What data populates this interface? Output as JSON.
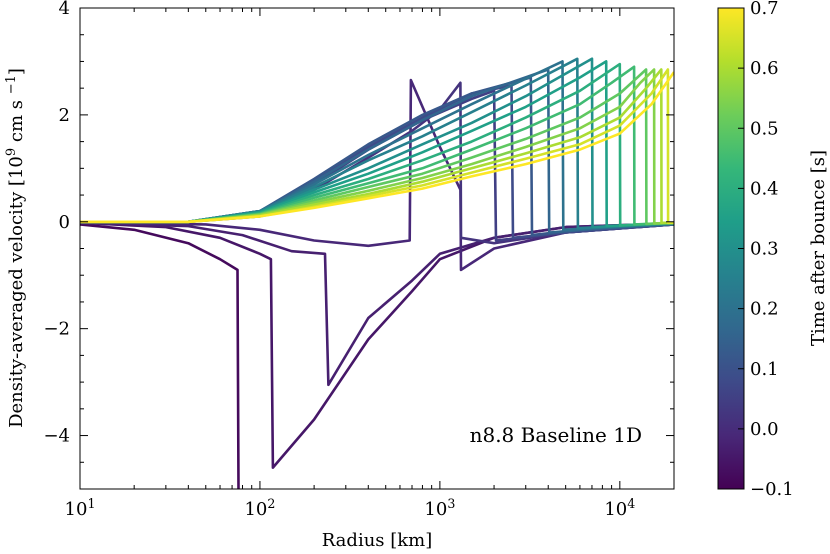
{
  "chart_data": {
    "type": "line",
    "xlabel": "Radius [km]",
    "ylabel": "Density-averaged velocity [10^9 cm s^-1]",
    "xscale": "log",
    "xlim": [
      10,
      20000
    ],
    "ylim": [
      -5,
      4
    ],
    "xticks": [
      10,
      100,
      1000,
      10000
    ],
    "xtick_labels": [
      "10^1",
      "10^2",
      "10^3",
      "10^4"
    ],
    "yticks": [
      -4,
      -2,
      0,
      2,
      4
    ],
    "ytick_labels": [
      "−4",
      "−2",
      "0",
      "2",
      "4"
    ],
    "annotation": "n8.8 Baseline 1D",
    "colorbar": {
      "label": "Time after bounce [s]",
      "colormap": "viridis",
      "range": [
        -0.1,
        0.7
      ],
      "ticks": [
        -0.1,
        0.0,
        0.1,
        0.2,
        0.3,
        0.4,
        0.5,
        0.6,
        0.7
      ],
      "tick_labels": [
        "−0.1",
        "0.0",
        "0.1",
        "0.2",
        "0.3",
        "0.4",
        "0.5",
        "0.6",
        "0.7"
      ]
    },
    "series": [
      {
        "t": -0.08,
        "points": [
          [
            10,
            -0.05
          ],
          [
            20,
            -0.15
          ],
          [
            40,
            -0.4
          ],
          [
            60,
            -0.7
          ],
          [
            75,
            -0.9
          ],
          [
            76,
            -5
          ]
        ]
      },
      {
        "t": -0.05,
        "points": [
          [
            10,
            -0.02
          ],
          [
            30,
            -0.1
          ],
          [
            60,
            -0.3
          ],
          [
            100,
            -0.6
          ],
          [
            115,
            -0.7
          ],
          [
            118,
            -4.6
          ],
          [
            200,
            -3.7
          ],
          [
            400,
            -2.2
          ],
          [
            700,
            -1.3
          ],
          [
            1000,
            -0.7
          ],
          [
            2000,
            -0.3
          ],
          [
            5000,
            -0.1
          ],
          [
            20000,
            -0.03
          ]
        ]
      },
      {
        "t": -0.03,
        "points": [
          [
            10,
            -0.02
          ],
          [
            40,
            -0.08
          ],
          [
            80,
            -0.25
          ],
          [
            150,
            -0.55
          ],
          [
            230,
            -0.6
          ],
          [
            240,
            -3.05
          ],
          [
            400,
            -1.8
          ],
          [
            700,
            -1.1
          ],
          [
            1000,
            -0.6
          ],
          [
            2000,
            -0.3
          ],
          [
            5000,
            -0.1
          ],
          [
            20000,
            -0.03
          ]
        ]
      },
      {
        "t": -0.01,
        "points": [
          [
            10,
            -0.02
          ],
          [
            50,
            -0.05
          ],
          [
            100,
            -0.15
          ],
          [
            200,
            -0.35
          ],
          [
            400,
            -0.45
          ],
          [
            680,
            -0.35
          ],
          [
            690,
            2.65
          ],
          [
            1000,
            1.4
          ],
          [
            1300,
            0.6
          ],
          [
            1310,
            -0.9
          ],
          [
            2000,
            -0.5
          ],
          [
            5000,
            -0.2
          ],
          [
            20000,
            -0.05
          ]
        ]
      },
      {
        "t": 0.02,
        "points": [
          [
            10,
            0
          ],
          [
            40,
            0
          ],
          [
            100,
            0.1
          ],
          [
            200,
            0.6
          ],
          [
            400,
            1.2
          ],
          [
            700,
            1.7
          ],
          [
            1000,
            2.1
          ],
          [
            1300,
            2.6
          ],
          [
            1310,
            -0.3
          ],
          [
            2000,
            -0.4
          ],
          [
            5000,
            -0.2
          ],
          [
            20000,
            -0.05
          ]
        ]
      },
      {
        "t": 0.05,
        "points": [
          [
            10,
            0
          ],
          [
            40,
            0
          ],
          [
            100,
            0.15
          ],
          [
            200,
            0.7
          ],
          [
            400,
            1.35
          ],
          [
            800,
            1.9
          ],
          [
            1500,
            2.3
          ],
          [
            2000,
            2.45
          ],
          [
            2050,
            -0.35
          ],
          [
            5000,
            -0.2
          ],
          [
            20000,
            -0.05
          ]
        ]
      },
      {
        "t": 0.08,
        "points": [
          [
            10,
            0
          ],
          [
            40,
            0
          ],
          [
            100,
            0.2
          ],
          [
            200,
            0.75
          ],
          [
            400,
            1.4
          ],
          [
            800,
            1.95
          ],
          [
            1500,
            2.4
          ],
          [
            2500,
            2.55
          ],
          [
            2550,
            -0.3
          ],
          [
            5000,
            -0.2
          ],
          [
            20000,
            -0.05
          ]
        ]
      },
      {
        "t": 0.12,
        "points": [
          [
            10,
            0
          ],
          [
            40,
            0
          ],
          [
            100,
            0.2
          ],
          [
            200,
            0.8
          ],
          [
            400,
            1.45
          ],
          [
            800,
            2.0
          ],
          [
            1500,
            2.4
          ],
          [
            3200,
            2.7
          ],
          [
            3250,
            -0.25
          ],
          [
            6000,
            -0.15
          ],
          [
            20000,
            -0.05
          ]
        ]
      },
      {
        "t": 0.16,
        "points": [
          [
            10,
            0
          ],
          [
            40,
            0
          ],
          [
            100,
            0.2
          ],
          [
            200,
            0.75
          ],
          [
            400,
            1.35
          ],
          [
            800,
            1.9
          ],
          [
            1500,
            2.35
          ],
          [
            4000,
            2.85
          ],
          [
            4050,
            -0.2
          ],
          [
            8000,
            -0.12
          ],
          [
            20000,
            -0.04
          ]
        ]
      },
      {
        "t": 0.2,
        "points": [
          [
            10,
            0
          ],
          [
            40,
            0
          ],
          [
            100,
            0.2
          ],
          [
            200,
            0.7
          ],
          [
            400,
            1.25
          ],
          [
            800,
            1.75
          ],
          [
            1500,
            2.2
          ],
          [
            4800,
            3.0
          ],
          [
            4850,
            -0.15
          ],
          [
            9000,
            -0.1
          ],
          [
            20000,
            -0.04
          ]
        ]
      },
      {
        "t": 0.25,
        "points": [
          [
            10,
            0
          ],
          [
            40,
            0
          ],
          [
            100,
            0.2
          ],
          [
            200,
            0.65
          ],
          [
            400,
            1.15
          ],
          [
            800,
            1.6
          ],
          [
            1500,
            2.05
          ],
          [
            3000,
            2.55
          ],
          [
            5800,
            3.05
          ],
          [
            5850,
            -0.12
          ],
          [
            10000,
            -0.08
          ],
          [
            20000,
            -0.03
          ]
        ]
      },
      {
        "t": 0.3,
        "points": [
          [
            10,
            0
          ],
          [
            40,
            0
          ],
          [
            100,
            0.18
          ],
          [
            200,
            0.6
          ],
          [
            400,
            1.0
          ],
          [
            800,
            1.45
          ],
          [
            1500,
            1.85
          ],
          [
            3000,
            2.35
          ],
          [
            7000,
            3.05
          ],
          [
            7050,
            -0.1
          ],
          [
            12000,
            -0.06
          ],
          [
            20000,
            -0.03
          ]
        ]
      },
      {
        "t": 0.35,
        "points": [
          [
            10,
            0
          ],
          [
            40,
            0
          ],
          [
            100,
            0.18
          ],
          [
            200,
            0.55
          ],
          [
            400,
            0.9
          ],
          [
            800,
            1.3
          ],
          [
            1500,
            1.7
          ],
          [
            3000,
            2.15
          ],
          [
            6000,
            2.7
          ],
          [
            8400,
            3.0
          ],
          [
            8450,
            -0.08
          ],
          [
            20000,
            -0.02
          ]
        ]
      },
      {
        "t": 0.4,
        "points": [
          [
            10,
            0
          ],
          [
            40,
            0
          ],
          [
            100,
            0.16
          ],
          [
            200,
            0.5
          ],
          [
            400,
            0.8
          ],
          [
            800,
            1.15
          ],
          [
            1500,
            1.5
          ],
          [
            3000,
            1.95
          ],
          [
            6000,
            2.45
          ],
          [
            10000,
            2.95
          ],
          [
            10050,
            -0.07
          ],
          [
            20000,
            -0.02
          ]
        ]
      },
      {
        "t": 0.45,
        "points": [
          [
            10,
            0
          ],
          [
            40,
            0
          ],
          [
            100,
            0.15
          ],
          [
            200,
            0.45
          ],
          [
            400,
            0.72
          ],
          [
            800,
            1.0
          ],
          [
            1500,
            1.35
          ],
          [
            3000,
            1.75
          ],
          [
            6000,
            2.2
          ],
          [
            9000,
            2.6
          ],
          [
            12000,
            2.9
          ],
          [
            12050,
            -0.05
          ],
          [
            20000,
            -0.02
          ]
        ]
      },
      {
        "t": 0.5,
        "points": [
          [
            10,
            0
          ],
          [
            40,
            0
          ],
          [
            100,
            0.14
          ],
          [
            200,
            0.4
          ],
          [
            400,
            0.65
          ],
          [
            800,
            0.9
          ],
          [
            1500,
            1.2
          ],
          [
            3000,
            1.55
          ],
          [
            6000,
            1.95
          ],
          [
            10000,
            2.4
          ],
          [
            14000,
            2.85
          ],
          [
            14050,
            -0.04
          ],
          [
            20000,
            -0.02
          ]
        ]
      },
      {
        "t": 0.55,
        "points": [
          [
            10,
            0
          ],
          [
            40,
            0
          ],
          [
            100,
            0.13
          ],
          [
            200,
            0.36
          ],
          [
            400,
            0.58
          ],
          [
            800,
            0.82
          ],
          [
            1500,
            1.08
          ],
          [
            3000,
            1.4
          ],
          [
            6000,
            1.75
          ],
          [
            10000,
            2.15
          ],
          [
            13000,
            2.6
          ],
          [
            15500,
            2.85
          ],
          [
            15550,
            -0.03
          ],
          [
            20000,
            -0.02
          ]
        ]
      },
      {
        "t": 0.6,
        "points": [
          [
            10,
            0
          ],
          [
            40,
            0
          ],
          [
            100,
            0.12
          ],
          [
            200,
            0.32
          ],
          [
            400,
            0.52
          ],
          [
            800,
            0.75
          ],
          [
            1500,
            1.0
          ],
          [
            3000,
            1.28
          ],
          [
            6000,
            1.58
          ],
          [
            10000,
            1.95
          ],
          [
            14000,
            2.5
          ],
          [
            17000,
            2.85
          ],
          [
            17050,
            -0.02
          ],
          [
            20000,
            -0.02
          ]
        ]
      },
      {
        "t": 0.65,
        "points": [
          [
            10,
            0
          ],
          [
            40,
            0
          ],
          [
            100,
            0.1
          ],
          [
            200,
            0.28
          ],
          [
            400,
            0.48
          ],
          [
            800,
            0.68
          ],
          [
            1500,
            0.92
          ],
          [
            3000,
            1.18
          ],
          [
            6000,
            1.45
          ],
          [
            10000,
            1.8
          ],
          [
            15000,
            2.4
          ],
          [
            18500,
            2.85
          ],
          [
            18550,
            -0.02
          ],
          [
            20000,
            -0.02
          ]
        ]
      },
      {
        "t": 0.7,
        "points": [
          [
            10,
            0
          ],
          [
            40,
            0
          ],
          [
            100,
            0.1
          ],
          [
            200,
            0.26
          ],
          [
            400,
            0.44
          ],
          [
            800,
            0.62
          ],
          [
            1500,
            0.85
          ],
          [
            3000,
            1.08
          ],
          [
            6000,
            1.35
          ],
          [
            10000,
            1.65
          ],
          [
            15000,
            2.2
          ],
          [
            20000,
            2.8
          ]
        ]
      }
    ]
  }
}
